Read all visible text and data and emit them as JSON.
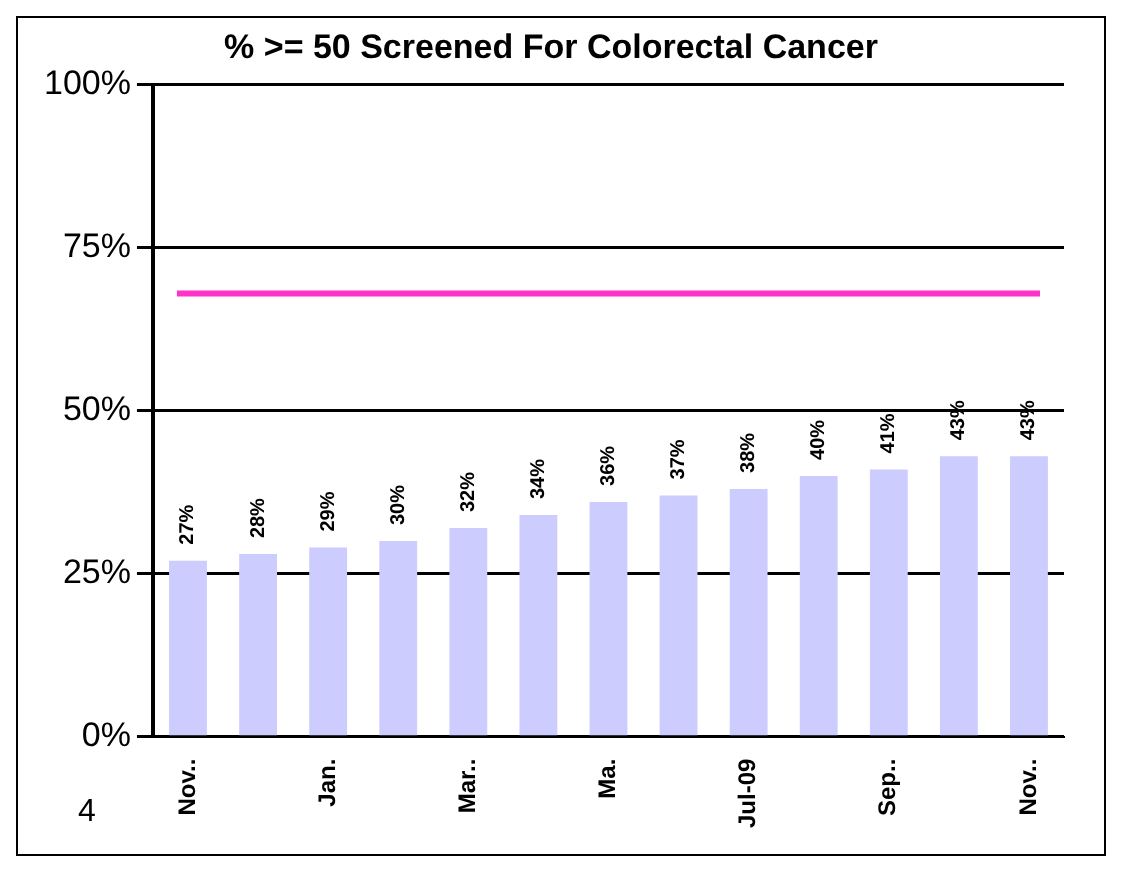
{
  "chart_data": {
    "type": "bar",
    "title": "% >= 50 Screened For Colorectal Cancer",
    "categories": [
      "Nov..",
      null,
      "Jan.",
      null,
      "Mar..",
      null,
      "Ma.",
      null,
      "Jul-09",
      null,
      "Sep..",
      null,
      "Nov.."
    ],
    "values": [
      27,
      28,
      29,
      30,
      32,
      34,
      36,
      37,
      38,
      40,
      41,
      43,
      43
    ],
    "value_labels": [
      "27%",
      "28%",
      "29%",
      "30%",
      "32%",
      "34%",
      "36%",
      "37%",
      "38%",
      "40%",
      "41%",
      "43%",
      "43%"
    ],
    "color": "#ccccff",
    "ylim": [
      0,
      100
    ],
    "yticks": [
      {
        "value": 0,
        "label": "0%"
      },
      {
        "value": 25,
        "label": "25%"
      },
      {
        "value": 50,
        "label": "50%"
      },
      {
        "value": 75,
        "label": "75%"
      },
      {
        "value": 100,
        "label": "100%"
      }
    ],
    "grid": "y",
    "legend": false,
    "ref_lines": [
      {
        "axis": "y",
        "value": 68,
        "color": "#ff33cc"
      }
    ],
    "annotations": [
      "4"
    ]
  }
}
